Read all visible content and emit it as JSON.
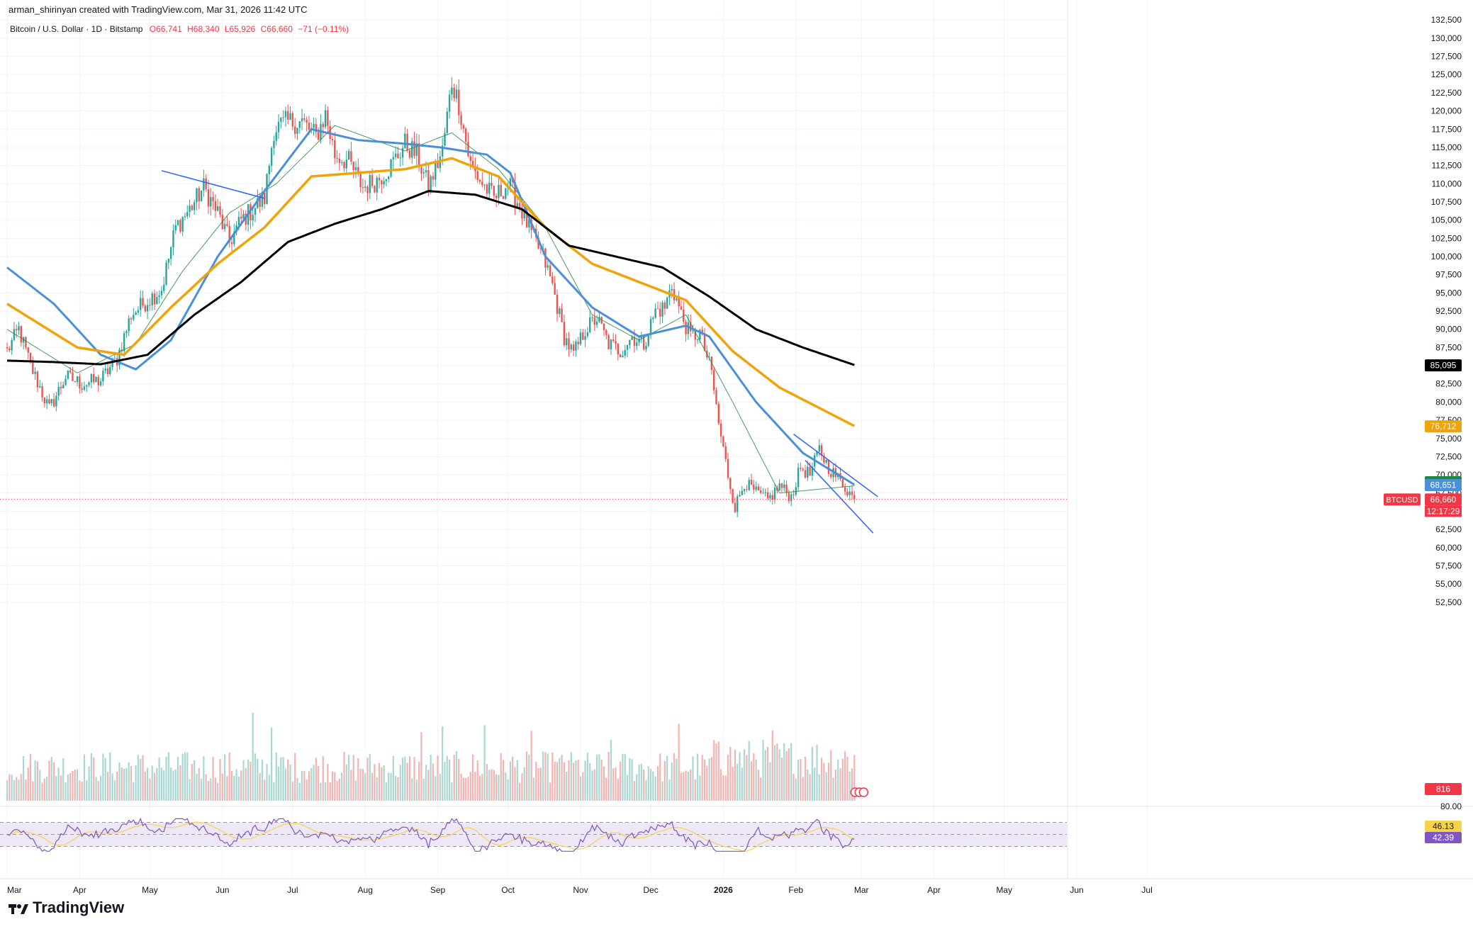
{
  "header": {
    "attribution": "arman_shirinyan created with TradingView.com, Mar 31, 2026 11:42 UTC",
    "symbol_line": "Bitcoin / U.S. Dollar · 1D · Bitstamp",
    "ohlc": {
      "open": "O66,741",
      "high": "H68,340",
      "low": "L65,926",
      "close": "C66,660",
      "change": "−71 (−0.11%)"
    }
  },
  "footer": {
    "logo_text": "TradingView"
  },
  "colors": {
    "up": "#26a69a",
    "down": "#ef5350",
    "ma_fast": "#2d8a3e",
    "ma_blue": "#4a90d9",
    "ma_orange": "#f0a30a",
    "ma_black": "#000000",
    "channel": "#2962ff",
    "rsi_line": "#7e57c2",
    "rsi_signal": "#f7d44c",
    "rsi_band": "#ede7f6"
  },
  "chart_data": {
    "type": "candlestick",
    "symbol": "BTCUSD",
    "y_axis": {
      "side": "right",
      "ticks": [
        "132,500",
        "130,000",
        "127,500",
        "125,000",
        "122,500",
        "120,000",
        "117,500",
        "115,000",
        "112,500",
        "110,000",
        "107,500",
        "105,000",
        "102,500",
        "100,000",
        "97,500",
        "95,000",
        "92,500",
        "90,000",
        "87,500",
        "85,000",
        "82,500",
        "80,000",
        "77,500",
        "75,000",
        "72,500",
        "70,000",
        "67,500",
        "65,000",
        "62,500",
        "60,000",
        "57,500",
        "55,000",
        "52,500"
      ],
      "ylim": [
        52000,
        133300
      ]
    },
    "x_axis": {
      "ticks": [
        "Mar",
        "Apr",
        "May",
        "Jun",
        "Jul",
        "Aug",
        "Sep",
        "Oct",
        "Nov",
        "Dec",
        "2026",
        "Feb",
        "Mar",
        "Apr",
        "May",
        "Jun",
        "Jul"
      ],
      "bold_ticks": [
        "2026"
      ]
    },
    "price_anchors": [
      [
        0,
        87000
      ],
      [
        5,
        90000
      ],
      [
        10,
        85000
      ],
      [
        18,
        79000
      ],
      [
        25,
        83500
      ],
      [
        32,
        82500
      ],
      [
        40,
        83000
      ],
      [
        47,
        86000
      ],
      [
        53,
        92000
      ],
      [
        60,
        94000
      ],
      [
        66,
        95500
      ],
      [
        72,
        104000
      ],
      [
        78,
        106500
      ],
      [
        84,
        109500
      ],
      [
        90,
        106000
      ],
      [
        95,
        102000
      ],
      [
        100,
        105000
      ],
      [
        105,
        106500
      ],
      [
        110,
        108000
      ],
      [
        114,
        117500
      ],
      [
        120,
        118500
      ],
      [
        126,
        118500
      ],
      [
        132,
        116500
      ],
      [
        136,
        119500
      ],
      [
        140,
        114000
      ],
      [
        146,
        113000
      ],
      [
        152,
        109500
      ],
      [
        158,
        110500
      ],
      [
        164,
        112500
      ],
      [
        170,
        115500
      ],
      [
        175,
        114000
      ],
      [
        180,
        109500
      ],
      [
        186,
        114500
      ],
      [
        190,
        124000
      ],
      [
        193,
        121000
      ],
      [
        198,
        112500
      ],
      [
        203,
        110000
      ],
      [
        208,
        108000
      ],
      [
        214,
        110000
      ],
      [
        219,
        107000
      ],
      [
        224,
        103000
      ],
      [
        229,
        100000
      ],
      [
        233,
        96000
      ],
      [
        238,
        89000
      ],
      [
        242,
        86500
      ],
      [
        247,
        90000
      ],
      [
        252,
        91500
      ],
      [
        257,
        88000
      ],
      [
        262,
        87000
      ],
      [
        267,
        89000
      ],
      [
        272,
        88000
      ],
      [
        277,
        92500
      ],
      [
        281,
        93000
      ],
      [
        284,
        96000
      ],
      [
        288,
        92000
      ],
      [
        292,
        89000
      ],
      [
        296,
        89500
      ],
      [
        301,
        84000
      ],
      [
        304,
        77000
      ],
      [
        308,
        70000
      ],
      [
        311,
        65500
      ],
      [
        315,
        69000
      ],
      [
        320,
        67500
      ],
      [
        325,
        66500
      ],
      [
        330,
        68500
      ],
      [
        335,
        67000
      ],
      [
        339,
        71000
      ],
      [
        343,
        70000
      ],
      [
        347,
        73500
      ],
      [
        351,
        71000
      ],
      [
        355,
        69500
      ],
      [
        359,
        68000
      ],
      [
        362,
        66660
      ]
    ],
    "last_index": 362,
    "moving_averages": [
      {
        "label": "MA fast (green)",
        "anchors": [
          [
            0,
            90000
          ],
          [
            30,
            84000
          ],
          [
            55,
            88000
          ],
          [
            75,
            98000
          ],
          [
            95,
            106000
          ],
          [
            115,
            110000
          ],
          [
            140,
            118000
          ],
          [
            170,
            114500
          ],
          [
            190,
            117000
          ],
          [
            210,
            112000
          ],
          [
            230,
            104000
          ],
          [
            250,
            92000
          ],
          [
            270,
            88500
          ],
          [
            290,
            92000
          ],
          [
            310,
            80000
          ],
          [
            330,
            67500
          ],
          [
            362,
            68500
          ]
        ]
      },
      {
        "label": "MA50",
        "last_value": "68,651",
        "anchors": [
          [
            0,
            98500
          ],
          [
            20,
            93500
          ],
          [
            40,
            86500
          ],
          [
            55,
            84500
          ],
          [
            70,
            88500
          ],
          [
            90,
            100000
          ],
          [
            110,
            109000
          ],
          [
            130,
            117500
          ],
          [
            150,
            116000
          ],
          [
            170,
            115500
          ],
          [
            185,
            115000
          ],
          [
            205,
            114000
          ],
          [
            215,
            111500
          ],
          [
            230,
            100000
          ],
          [
            250,
            93000
          ],
          [
            270,
            89000
          ],
          [
            290,
            90500
          ],
          [
            300,
            89000
          ],
          [
            320,
            80000
          ],
          [
            340,
            73000
          ],
          [
            362,
            68651
          ]
        ]
      },
      {
        "label": "MA100",
        "last_value": "76,712",
        "anchors": [
          [
            0,
            93500
          ],
          [
            30,
            87500
          ],
          [
            50,
            86500
          ],
          [
            70,
            93000
          ],
          [
            90,
            99000
          ],
          [
            110,
            104000
          ],
          [
            130,
            111000
          ],
          [
            150,
            111500
          ],
          [
            170,
            112000
          ],
          [
            190,
            113500
          ],
          [
            210,
            111000
          ],
          [
            230,
            104000
          ],
          [
            250,
            99000
          ],
          [
            270,
            96500
          ],
          [
            290,
            94000
          ],
          [
            310,
            87000
          ],
          [
            330,
            82000
          ],
          [
            362,
            76712
          ]
        ]
      },
      {
        "label": "MA200",
        "last_value": "85,095",
        "anchors": [
          [
            0,
            85700
          ],
          [
            20,
            85500
          ],
          [
            40,
            85200
          ],
          [
            60,
            86500
          ],
          [
            80,
            92000
          ],
          [
            100,
            96500
          ],
          [
            120,
            102000
          ],
          [
            140,
            104500
          ],
          [
            160,
            106500
          ],
          [
            180,
            109000
          ],
          [
            200,
            108500
          ],
          [
            220,
            106500
          ],
          [
            240,
            101500
          ],
          [
            260,
            100000
          ],
          [
            280,
            98500
          ],
          [
            300,
            94500
          ],
          [
            320,
            90000
          ],
          [
            340,
            87500
          ],
          [
            362,
            85095
          ]
        ]
      }
    ],
    "trendlines": [
      {
        "label": "2025 upper line",
        "from": [
          66,
          111800
        ],
        "to": [
          110,
          108000
        ]
      },
      {
        "label": "channel upper",
        "from": [
          336,
          75600
        ],
        "to": [
          372,
          67000
        ]
      },
      {
        "label": "channel lower",
        "from": [
          341,
          72000
        ],
        "to": [
          370,
          62000
        ]
      }
    ],
    "last_price_label": {
      "symbol": "BTCUSD",
      "value": "66,660",
      "countdown": "12:17:29"
    },
    "price_badges": [
      {
        "value": "85,095",
        "color": "#000000"
      },
      {
        "value": "76,712",
        "color": "#f0a30a"
      },
      {
        "value": "69,037",
        "color": "#1b8a3e"
      },
      {
        "value": "68,651",
        "color": "#4a90d9"
      },
      {
        "value": "66,660",
        "color": "#f23645"
      }
    ],
    "volume": {
      "last_label": "816",
      "spikes": [
        [
          105,
          2.2
        ],
        [
          113,
          2.3
        ],
        [
          177,
          1.6
        ],
        [
          186,
          1.6
        ],
        [
          204,
          2.0
        ],
        [
          224,
          1.6
        ],
        [
          234,
          1.8
        ],
        [
          240,
          1.5
        ],
        [
          258,
          1.6
        ],
        [
          287,
          1.8
        ],
        [
          304,
          2.0
        ],
        [
          308,
          2.1
        ],
        [
          318,
          1.6
        ],
        [
          327,
          1.5
        ],
        [
          336,
          1.5
        ]
      ]
    },
    "rsi": {
      "axis_label": "80.00",
      "upper": 70,
      "lower": 30,
      "mid": 50,
      "rsi_value": "42.39",
      "signal_value": "46.13"
    }
  }
}
